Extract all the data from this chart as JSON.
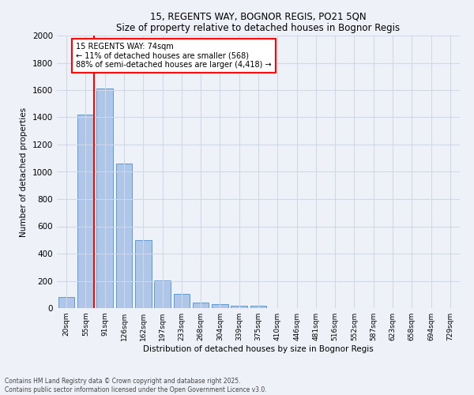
{
  "title1": "15, REGENTS WAY, BOGNOR REGIS, PO21 5QN",
  "title2": "Size of property relative to detached houses in Bognor Regis",
  "xlabel": "Distribution of detached houses by size in Bognor Regis",
  "ylabel": "Number of detached properties",
  "categories": [
    "20sqm",
    "55sqm",
    "91sqm",
    "126sqm",
    "162sqm",
    "197sqm",
    "233sqm",
    "268sqm",
    "304sqm",
    "339sqm",
    "375sqm",
    "410sqm",
    "446sqm",
    "481sqm",
    "516sqm",
    "552sqm",
    "587sqm",
    "623sqm",
    "658sqm",
    "694sqm",
    "729sqm"
  ],
  "values": [
    80,
    1420,
    1610,
    1060,
    500,
    205,
    105,
    40,
    30,
    20,
    20,
    0,
    0,
    0,
    0,
    0,
    0,
    0,
    0,
    0,
    0
  ],
  "bar_color": "#aec6e8",
  "bar_edge_color": "#5b9bd5",
  "reference_line_x": 1.45,
  "reference_line_color": "red",
  "annotation_text": "15 REGENTS WAY: 74sqm\n← 11% of detached houses are smaller (568)\n88% of semi-detached houses are larger (4,418) →",
  "annotation_box_color": "white",
  "annotation_box_edge_color": "red",
  "ylim": [
    0,
    2000
  ],
  "yticks": [
    0,
    200,
    400,
    600,
    800,
    1000,
    1200,
    1400,
    1600,
    1800,
    2000
  ],
  "footer1": "Contains HM Land Registry data © Crown copyright and database right 2025.",
  "footer2": "Contains public sector information licensed under the Open Government Licence v3.0.",
  "bg_color": "#eef2f8",
  "grid_color": "#d0d8e8"
}
